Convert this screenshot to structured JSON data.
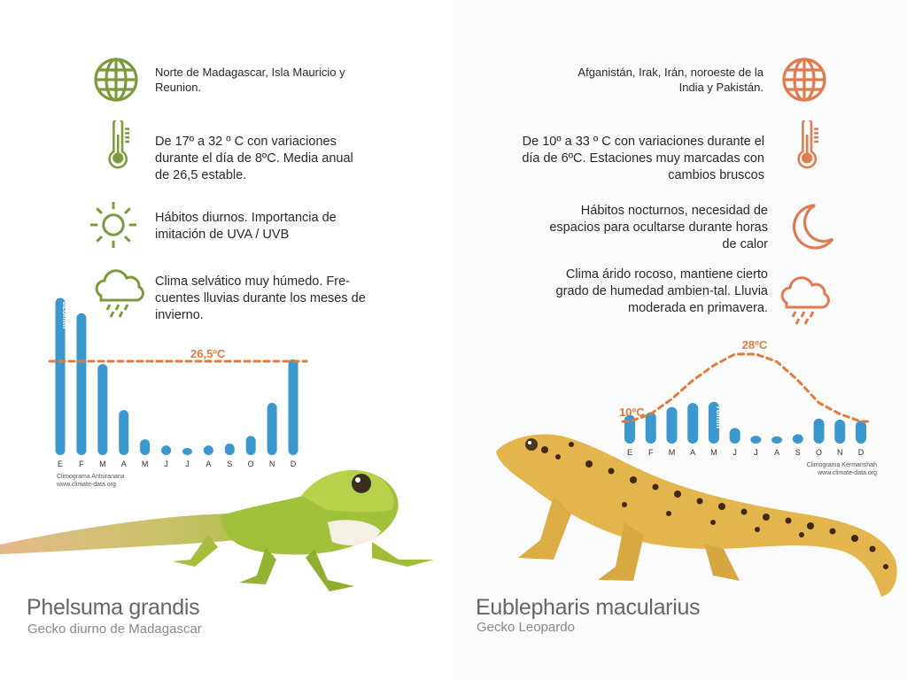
{
  "left": {
    "accent_color": "#7d9a3c",
    "bar_color": "#3a98cf",
    "line_color": "#e07b39",
    "info": [
      {
        "icon": "globe-icon",
        "text": "Norte de Madagascar, Isla Mauricio y Reunion."
      },
      {
        "icon": "thermometer-icon",
        "text": "De 17º a 32 º C con variaciones durante el día de 8ºC. Media anual de 26,5 estable."
      },
      {
        "icon": "sun-icon",
        "text": "Hábitos diurnos. Importancia de imitación de UVA / UVB"
      },
      {
        "icon": "rain-cloud-icon",
        "text": "Clima selvático muy húmedo. Fre-cuentes lluvias durante los meses de invierno."
      }
    ],
    "source_line1": "Climograma Antsiranana",
    "source_line2": "www.climate-data.org",
    "species": "Phelsuma grandis",
    "common": "Gecko diurno de Madagascar"
  },
  "right": {
    "accent_color": "#e07b4f",
    "bar_color": "#3a98cf",
    "line_color": "#e07b39",
    "info": [
      {
        "icon": "globe-icon",
        "text": "Afganistán, Irak, Irán, noroeste de la India y Pakistán."
      },
      {
        "icon": "thermometer-icon",
        "text": "De 10º a 33 º C con variaciones durante el día de 6ºC. Estaciones muy marcadas con cambios bruscos"
      },
      {
        "icon": "moon-icon",
        "text": "Hábitos nocturnos, necesidad de espacios para ocultarse durante horas de calor"
      },
      {
        "icon": "rain-cloud-icon",
        "text": "Clima árido rocoso, mantiene cierto grado de humedad ambien-tal. Lluvia moderada en primavera."
      }
    ],
    "source_line1": "Climograma Kermanshah",
    "source_line2": "www.climate-data.org",
    "species": "Eublepharis macularius",
    "common": "Gecko Leopardo"
  },
  "chart_data": [
    {
      "type": "bar",
      "categories": [
        "E",
        "F",
        "M",
        "A",
        "M",
        "J",
        "J",
        "A",
        "S",
        "O",
        "N",
        "D"
      ],
      "series": [
        {
          "values": [
            328,
            296,
            190,
            94,
            33,
            20,
            15,
            20,
            24,
            40,
            109,
            200
          ]
        }
      ],
      "bar_annotation": "328mm",
      "temperature_line": {
        "label": "26,5ºC",
        "values": [
          26.5,
          26.5,
          26.5,
          26.5,
          26.5,
          26.5,
          26.5,
          26.5,
          26.5,
          26.5,
          26.5,
          26.5
        ]
      },
      "ylim": [
        0,
        340
      ]
    },
    {
      "type": "bar",
      "categories": [
        "E",
        "F",
        "M",
        "A",
        "M",
        "J",
        "J",
        "A",
        "S",
        "O",
        "N",
        "D"
      ],
      "series": [
        {
          "values": [
            55,
            60,
            70,
            78,
            80,
            30,
            15,
            14,
            18,
            48,
            46,
            44
          ]
        }
      ],
      "bar_annotation": "78mm",
      "temperature_line": {
        "label_min": "10ºC",
        "label_max": "28ºC",
        "values": [
          10,
          12,
          16,
          21,
          25,
          28,
          28,
          26,
          21,
          15,
          12,
          10
        ]
      },
      "ylim": [
        0,
        90
      ]
    }
  ]
}
